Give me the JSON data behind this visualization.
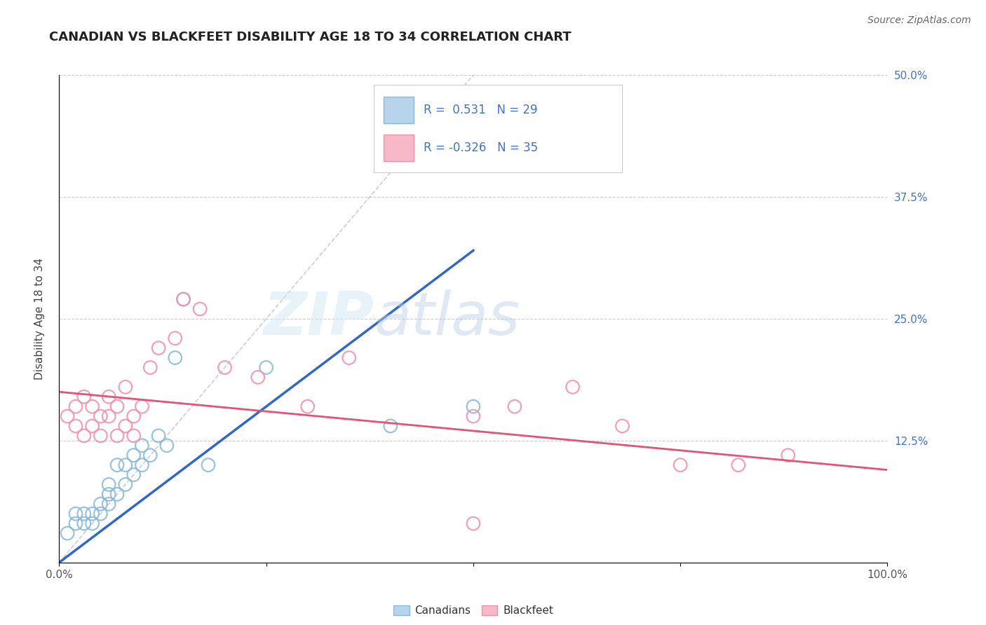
{
  "title": "CANADIAN VS BLACKFEET DISABILITY AGE 18 TO 34 CORRELATION CHART",
  "source": "Source: ZipAtlas.com",
  "ylabel": "Disability Age 18 to 34",
  "xlim": [
    0,
    1.0
  ],
  "ylim": [
    0,
    0.5
  ],
  "xticks": [
    0.0,
    0.25,
    0.5,
    0.75,
    1.0
  ],
  "xticklabels": [
    "0.0%",
    "",
    "",
    "",
    "100.0%"
  ],
  "yticks": [
    0.0,
    0.125,
    0.25,
    0.375,
    0.5
  ],
  "yticklabels_right": [
    "",
    "12.5%",
    "25.0%",
    "37.5%",
    "50.0%"
  ],
  "canadian_r": 0.531,
  "canadian_n": 29,
  "blackfeet_r": -0.326,
  "blackfeet_n": 35,
  "canadian_dot_color": "#8ab8d8",
  "blackfeet_dot_color": "#f090a8",
  "canadian_line_color": "#3366cc",
  "blackfeet_line_color": "#e05575",
  "legend_box_color_canadian": "#b8d4ea",
  "legend_box_color_blackfeet": "#f8b8c8",
  "watermark_zip": "ZIP",
  "watermark_atlas": "atlas",
  "canadians_x": [
    0.01,
    0.02,
    0.02,
    0.03,
    0.03,
    0.04,
    0.04,
    0.05,
    0.05,
    0.06,
    0.06,
    0.06,
    0.07,
    0.07,
    0.08,
    0.08,
    0.09,
    0.09,
    0.1,
    0.1,
    0.11,
    0.12,
    0.13,
    0.14,
    0.15,
    0.18,
    0.25,
    0.4,
    0.5
  ],
  "canadians_y": [
    0.03,
    0.04,
    0.05,
    0.04,
    0.05,
    0.04,
    0.05,
    0.06,
    0.05,
    0.06,
    0.07,
    0.08,
    0.07,
    0.1,
    0.08,
    0.1,
    0.09,
    0.11,
    0.1,
    0.12,
    0.11,
    0.13,
    0.12,
    0.21,
    0.27,
    0.1,
    0.2,
    0.14,
    0.16
  ],
  "blackfeet_x": [
    0.01,
    0.02,
    0.02,
    0.03,
    0.03,
    0.04,
    0.04,
    0.05,
    0.05,
    0.06,
    0.06,
    0.07,
    0.07,
    0.08,
    0.08,
    0.09,
    0.09,
    0.1,
    0.11,
    0.12,
    0.14,
    0.15,
    0.17,
    0.2,
    0.24,
    0.3,
    0.35,
    0.5,
    0.55,
    0.62,
    0.68,
    0.75,
    0.82,
    0.88,
    0.5
  ],
  "blackfeet_y": [
    0.15,
    0.14,
    0.16,
    0.13,
    0.17,
    0.14,
    0.16,
    0.15,
    0.13,
    0.17,
    0.15,
    0.13,
    0.16,
    0.14,
    0.18,
    0.15,
    0.13,
    0.16,
    0.2,
    0.22,
    0.23,
    0.27,
    0.26,
    0.2,
    0.19,
    0.16,
    0.21,
    0.15,
    0.16,
    0.18,
    0.14,
    0.1,
    0.1,
    0.11,
    0.04
  ],
  "can_line_x0": 0.0,
  "can_line_y0": 0.0,
  "can_line_x1": 0.5,
  "can_line_y1": 0.32,
  "blk_line_x0": 0.0,
  "blk_line_y0": 0.175,
  "blk_line_x1": 1.0,
  "blk_line_y1": 0.095
}
